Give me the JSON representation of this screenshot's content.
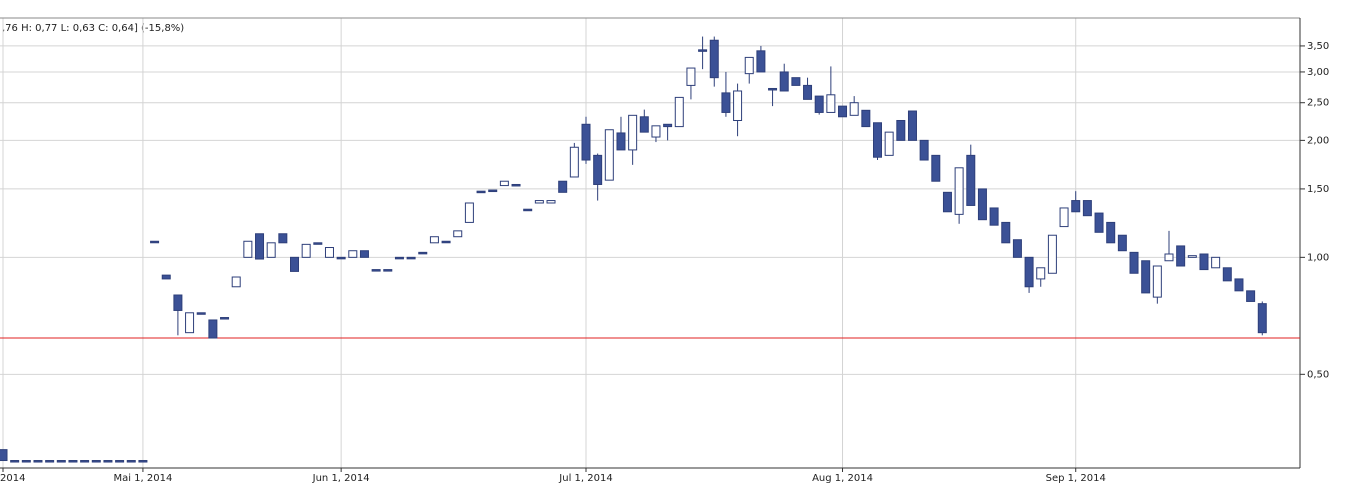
{
  "chart_data": {
    "type": "candlestick",
    "subtitle": ",76  H: 0,77  L: 0,63  C: 0,64] (-15,8%)",
    "log_scale": true,
    "grid": true,
    "up_color": "#ffffff",
    "down_color": "#3b5196",
    "edge_color": "#2e3f7a",
    "reference_line": 0.62,
    "reference_color": "#e02020",
    "ylim": [
      0.287,
      4.13
    ],
    "yticks": [
      {
        "value": 0.5,
        "label": "0,50"
      },
      {
        "value": 1.0,
        "label": "1,00"
      },
      {
        "value": 1.5,
        "label": "1,50"
      },
      {
        "value": 2.0,
        "label": "2,00"
      },
      {
        "value": 2.5,
        "label": "2,50"
      },
      {
        "value": 3.0,
        "label": "3,00"
      },
      {
        "value": 3.5,
        "label": "3,50"
      }
    ],
    "categories": [
      "2014",
      null,
      null,
      null,
      null,
      null,
      null,
      null,
      null,
      null,
      null,
      null,
      "Mai 1, 2014",
      null,
      null,
      null,
      null,
      null,
      null,
      null,
      null,
      null,
      null,
      null,
      null,
      null,
      null,
      null,
      null,
      "Jun 1, 2014",
      null,
      null,
      null,
      null,
      null,
      null,
      null,
      null,
      null,
      null,
      null,
      null,
      null,
      null,
      null,
      null,
      null,
      null,
      null,
      null,
      "Jul 1, 2014",
      null,
      null,
      null,
      null,
      null,
      null,
      null,
      null,
      null,
      null,
      null,
      null,
      null,
      null,
      null,
      null,
      null,
      null,
      null,
      null,
      null,
      "Aug 1, 2014",
      null,
      null,
      null,
      null,
      null,
      null,
      null,
      null,
      null,
      null,
      null,
      null,
      null,
      null,
      null,
      null,
      null,
      null,
      null,
      "Sep 1, 2014",
      null,
      null,
      null,
      null,
      null,
      null,
      null,
      null,
      null,
      null,
      null,
      null,
      null,
      null,
      null,
      null
    ],
    "open": [
      0.32,
      0.3,
      0.3,
      0.3,
      0.3,
      0.3,
      0.3,
      0.3,
      0.3,
      0.3,
      0.3,
      0.3,
      0.3,
      1.1,
      0.9,
      0.8,
      0.64,
      0.72,
      0.69,
      0.7,
      0.84,
      1.0,
      1.15,
      1.0,
      1.15,
      1.0,
      1.0,
      1.09,
      1.0,
      1.0,
      1.0,
      1.04,
      0.93,
      0.93,
      1.0,
      1.0,
      1.03,
      1.09,
      1.1,
      1.13,
      1.23,
      1.48,
      1.49,
      1.53,
      1.54,
      1.33,
      1.38,
      1.38,
      1.57,
      1.61,
      2.2,
      1.83,
      1.58,
      2.09,
      1.89,
      2.3,
      2.04,
      2.2,
      2.17,
      2.77,
      3.42,
      3.62,
      2.65,
      2.25,
      2.97,
      3.4,
      2.72,
      3.0,
      2.9,
      2.77,
      2.6,
      2.36,
      2.45,
      2.32,
      2.39,
      2.22,
      1.83,
      2.25,
      2.38,
      2.0,
      1.83,
      1.47,
      1.29,
      1.83,
      1.5,
      1.34,
      1.23,
      1.11,
      1.0,
      0.88,
      0.91,
      1.2,
      1.4,
      1.4,
      1.3,
      1.23,
      1.14,
      1.03,
      0.98,
      0.79,
      0.98,
      1.07,
      1.0,
      1.02,
      0.94,
      0.94,
      0.88,
      0.82,
      0.76
    ],
    "high": [
      0.32,
      0.3,
      0.3,
      0.3,
      0.3,
      0.3,
      0.3,
      0.3,
      0.3,
      0.3,
      0.3,
      0.3,
      0.3,
      1.1,
      0.9,
      0.8,
      0.72,
      0.72,
      0.69,
      0.7,
      0.89,
      1.1,
      1.15,
      1.09,
      1.15,
      1.0,
      1.08,
      1.09,
      1.06,
      1.0,
      1.04,
      1.04,
      0.93,
      0.93,
      1.0,
      1.0,
      1.03,
      1.13,
      1.1,
      1.17,
      1.38,
      1.48,
      1.49,
      1.57,
      1.54,
      1.33,
      1.4,
      1.4,
      1.57,
      1.97,
      2.3,
      1.85,
      2.13,
      2.3,
      2.32,
      2.4,
      2.18,
      2.2,
      2.58,
      3.07,
      3.7,
      3.7,
      3.0,
      2.8,
      3.27,
      3.5,
      2.72,
      3.15,
      2.9,
      2.9,
      2.6,
      3.1,
      2.45,
      2.6,
      2.39,
      2.22,
      2.1,
      2.25,
      2.38,
      2.0,
      1.83,
      1.47,
      1.7,
      1.95,
      1.5,
      1.34,
      1.23,
      1.11,
      1.0,
      0.94,
      1.14,
      1.34,
      1.48,
      1.4,
      1.3,
      1.23,
      1.14,
      1.03,
      0.98,
      0.95,
      1.17,
      1.07,
      1.01,
      1.02,
      1.0,
      0.94,
      0.88,
      0.82,
      0.77
    ],
    "low": [
      0.3,
      0.3,
      0.3,
      0.3,
      0.3,
      0.3,
      0.3,
      0.3,
      0.3,
      0.3,
      0.3,
      0.3,
      0.3,
      1.1,
      0.88,
      0.63,
      0.64,
      0.72,
      0.62,
      0.7,
      0.84,
      1.0,
      0.99,
      1.0,
      1.09,
      0.92,
      1.0,
      1.09,
      1.0,
      1.0,
      1.0,
      1.0,
      0.93,
      0.93,
      1.0,
      1.0,
      1.03,
      1.09,
      1.1,
      1.13,
      1.23,
      1.48,
      1.49,
      1.53,
      1.54,
      1.33,
      1.38,
      1.38,
      1.47,
      1.61,
      1.74,
      1.4,
      1.58,
      1.89,
      1.73,
      2.1,
      1.98,
      2.0,
      2.17,
      2.55,
      3.05,
      2.75,
      2.3,
      2.05,
      2.8,
      3.0,
      2.45,
      2.68,
      2.77,
      2.55,
      2.33,
      2.36,
      2.3,
      2.32,
      2.17,
      1.78,
      1.83,
      2.0,
      2.0,
      1.78,
      1.57,
      1.31,
      1.22,
      1.36,
      1.25,
      1.21,
      1.09,
      1.0,
      0.81,
      0.84,
      0.91,
      1.2,
      1.31,
      1.28,
      1.16,
      1.09,
      1.04,
      0.91,
      0.81,
      0.76,
      0.98,
      0.95,
      1.0,
      0.93,
      0.94,
      0.87,
      0.82,
      0.77,
      0.63
    ],
    "close": [
      0.3,
      0.3,
      0.3,
      0.3,
      0.3,
      0.3,
      0.3,
      0.3,
      0.3,
      0.3,
      0.3,
      0.3,
      0.3,
      1.1,
      0.88,
      0.73,
      0.72,
      0.72,
      0.62,
      0.7,
      0.89,
      1.1,
      0.99,
      1.09,
      1.09,
      0.92,
      1.08,
      1.09,
      1.06,
      1.0,
      1.04,
      1.0,
      0.93,
      0.93,
      1.0,
      1.0,
      1.03,
      1.13,
      1.1,
      1.17,
      1.38,
      1.48,
      1.49,
      1.57,
      1.54,
      1.33,
      1.4,
      1.4,
      1.47,
      1.92,
      1.78,
      1.54,
      2.13,
      1.89,
      2.32,
      2.1,
      2.18,
      2.17,
      2.58,
      3.07,
      3.42,
      2.9,
      2.36,
      2.68,
      3.27,
      3.0,
      2.72,
      2.68,
      2.77,
      2.55,
      2.36,
      2.62,
      2.3,
      2.5,
      2.17,
      1.81,
      2.1,
      2.0,
      2.0,
      1.78,
      1.57,
      1.31,
      1.7,
      1.36,
      1.25,
      1.21,
      1.09,
      1.0,
      0.84,
      0.94,
      1.14,
      1.34,
      1.31,
      1.28,
      1.16,
      1.09,
      1.04,
      0.91,
      0.81,
      0.95,
      1.02,
      0.95,
      1.01,
      0.93,
      1.0,
      0.87,
      0.82,
      0.77,
      0.64
    ]
  }
}
